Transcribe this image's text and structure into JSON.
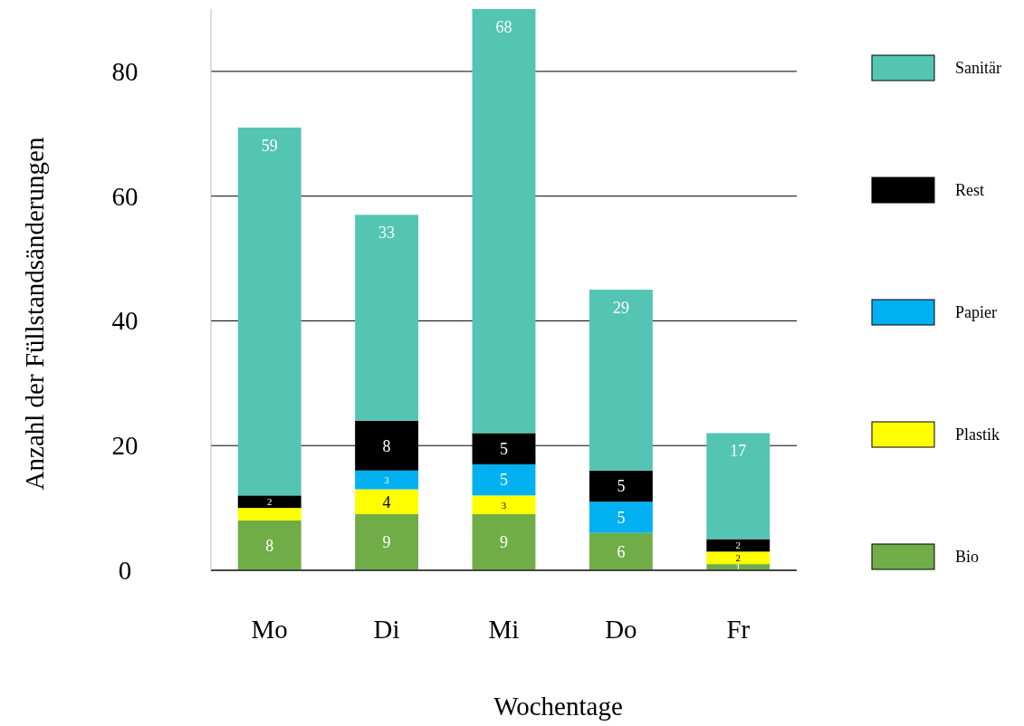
{
  "chart_data": {
    "type": "bar",
    "stacked": true,
    "xlabel": "Wochentage",
    "ylabel": "Anzahl der Füllstandsänderungen",
    "categories": [
      "Mo",
      "Di",
      "Mi",
      "Do",
      "Fr"
    ],
    "series": [
      {
        "name": "Bio",
        "color": "#70ad47",
        "values": [
          8,
          9,
          9,
          6,
          1
        ],
        "value_labels": [
          "8",
          "9",
          "9",
          "6",
          "1"
        ]
      },
      {
        "name": "Plastik",
        "color": "#ffff00",
        "values": [
          2,
          4,
          3,
          null,
          2
        ],
        "value_labels": [
          null,
          "4",
          "3",
          null,
          "2"
        ]
      },
      {
        "name": "Papier",
        "color": "#00b0f0",
        "values": [
          null,
          3,
          5,
          5,
          null
        ],
        "value_labels": [
          null,
          "3",
          "5",
          "5",
          null
        ]
      },
      {
        "name": "Rest",
        "color": "#000000",
        "values": [
          2,
          8,
          5,
          5,
          2
        ],
        "value_labels": [
          "2",
          "8",
          "5",
          "5",
          "2"
        ]
      },
      {
        "name": "Sanitär",
        "color": "#53c5b2",
        "values": [
          59,
          33,
          68,
          29,
          17
        ],
        "value_labels": [
          "59",
          "33",
          "68",
          "29",
          "17"
        ]
      }
    ],
    "ylim": [
      0,
      90
    ],
    "yticks": [
      0,
      20,
      40,
      60,
      80
    ],
    "grid": "y",
    "legend": "right"
  }
}
